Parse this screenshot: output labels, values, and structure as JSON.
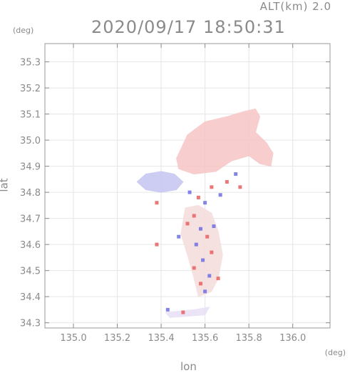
{
  "header": {
    "altitude_label": "ALT(km)  2.0",
    "timestamp": "2020/09/17  18:50:31"
  },
  "chart_data": {
    "type": "heatmap",
    "title": "2020/09/17  18:50:31",
    "xlabel": "lon",
    "ylabel": "lat",
    "x_unit": "(deg)",
    "y_unit": "(deg)",
    "xlim": [
      134.87,
      136.17
    ],
    "ylim": [
      34.28,
      35.37
    ],
    "x_ticks": [
      135.0,
      135.2,
      135.4,
      135.6,
      135.8,
      136.0
    ],
    "x_tick_labels": [
      "135.0",
      "135.2",
      "135.4",
      "135.6",
      "135.8",
      "136.0"
    ],
    "y_ticks": [
      34.3,
      34.4,
      34.5,
      34.6,
      34.7,
      34.8,
      34.9,
      35.0,
      35.1,
      35.2,
      35.3
    ],
    "y_tick_labels": [
      "34.3",
      "34.4",
      "34.5",
      "34.6",
      "34.7",
      "34.8",
      "34.9",
      "35.0",
      "35.1",
      "35.2",
      "35.3"
    ],
    "grid": true,
    "regions": [
      {
        "name": "northern-pink-echo",
        "color": "#f7c8c8",
        "polygon": [
          [
            135.47,
            34.93
          ],
          [
            135.52,
            35.02
          ],
          [
            135.6,
            35.07
          ],
          [
            135.7,
            35.09
          ],
          [
            135.78,
            35.11
          ],
          [
            135.83,
            35.12
          ],
          [
            135.85,
            35.09
          ],
          [
            135.83,
            35.03
          ],
          [
            135.88,
            34.99
          ],
          [
            135.91,
            34.95
          ],
          [
            135.9,
            34.9
          ],
          [
            135.85,
            34.91
          ],
          [
            135.8,
            34.94
          ],
          [
            135.72,
            34.92
          ],
          [
            135.65,
            34.88
          ],
          [
            135.55,
            34.87
          ],
          [
            135.48,
            34.89
          ]
        ]
      },
      {
        "name": "western-blue-echo",
        "color": "#c8c8f3",
        "polygon": [
          [
            135.29,
            34.84
          ],
          [
            135.33,
            34.87
          ],
          [
            135.4,
            34.88
          ],
          [
            135.46,
            34.87
          ],
          [
            135.5,
            34.84
          ],
          [
            135.47,
            34.81
          ],
          [
            135.4,
            34.8
          ],
          [
            135.33,
            34.81
          ]
        ]
      },
      {
        "name": "southern-mixed-echo",
        "color": "#f6dede",
        "polygon": [
          [
            135.51,
            34.74
          ],
          [
            135.57,
            34.75
          ],
          [
            135.63,
            34.72
          ],
          [
            135.66,
            34.65
          ],
          [
            135.68,
            34.56
          ],
          [
            135.66,
            34.47
          ],
          [
            135.63,
            34.42
          ],
          [
            135.57,
            34.4
          ],
          [
            135.55,
            34.47
          ],
          [
            135.52,
            34.56
          ],
          [
            135.49,
            34.64
          ]
        ]
      },
      {
        "name": "southern-speckle",
        "color": "#e8e2f6",
        "polygon": [
          [
            135.42,
            34.34
          ],
          [
            135.55,
            34.35
          ],
          [
            135.62,
            34.36
          ],
          [
            135.6,
            34.33
          ],
          [
            135.44,
            34.32
          ]
        ]
      }
    ],
    "cells": [
      {
        "x": 135.38,
        "y": 34.76,
        "color": "#e86060"
      },
      {
        "x": 135.53,
        "y": 34.8,
        "color": "#6f6fe3"
      },
      {
        "x": 135.57,
        "y": 34.78,
        "color": "#e86060"
      },
      {
        "x": 135.6,
        "y": 34.76,
        "color": "#6f6fe3"
      },
      {
        "x": 135.63,
        "y": 34.82,
        "color": "#e86060"
      },
      {
        "x": 135.67,
        "y": 34.79,
        "color": "#6f6fe3"
      },
      {
        "x": 135.7,
        "y": 34.84,
        "color": "#e86060"
      },
      {
        "x": 135.74,
        "y": 34.87,
        "color": "#6f6fe3"
      },
      {
        "x": 135.76,
        "y": 34.82,
        "color": "#e86060"
      },
      {
        "x": 135.55,
        "y": 34.71,
        "color": "#e86060"
      },
      {
        "x": 135.58,
        "y": 34.66,
        "color": "#6f6fe3"
      },
      {
        "x": 135.61,
        "y": 34.63,
        "color": "#e86060"
      },
      {
        "x": 135.56,
        "y": 34.6,
        "color": "#6f6fe3"
      },
      {
        "x": 135.63,
        "y": 34.57,
        "color": "#e86060"
      },
      {
        "x": 135.59,
        "y": 34.54,
        "color": "#6f6fe3"
      },
      {
        "x": 135.55,
        "y": 34.51,
        "color": "#e86060"
      },
      {
        "x": 135.62,
        "y": 34.48,
        "color": "#6f6fe3"
      },
      {
        "x": 135.58,
        "y": 34.45,
        "color": "#e86060"
      },
      {
        "x": 135.66,
        "y": 34.47,
        "color": "#e86060"
      },
      {
        "x": 135.6,
        "y": 34.42,
        "color": "#6f6fe3"
      },
      {
        "x": 135.48,
        "y": 34.63,
        "color": "#6f6fe3"
      },
      {
        "x": 135.38,
        "y": 34.6,
        "color": "#e86060"
      },
      {
        "x": 135.52,
        "y": 34.68,
        "color": "#e86060"
      },
      {
        "x": 135.64,
        "y": 34.67,
        "color": "#6f6fe3"
      },
      {
        "x": 135.43,
        "y": 34.35,
        "color": "#6f6fe3"
      },
      {
        "x": 135.5,
        "y": 34.34,
        "color": "#e86060"
      }
    ]
  }
}
